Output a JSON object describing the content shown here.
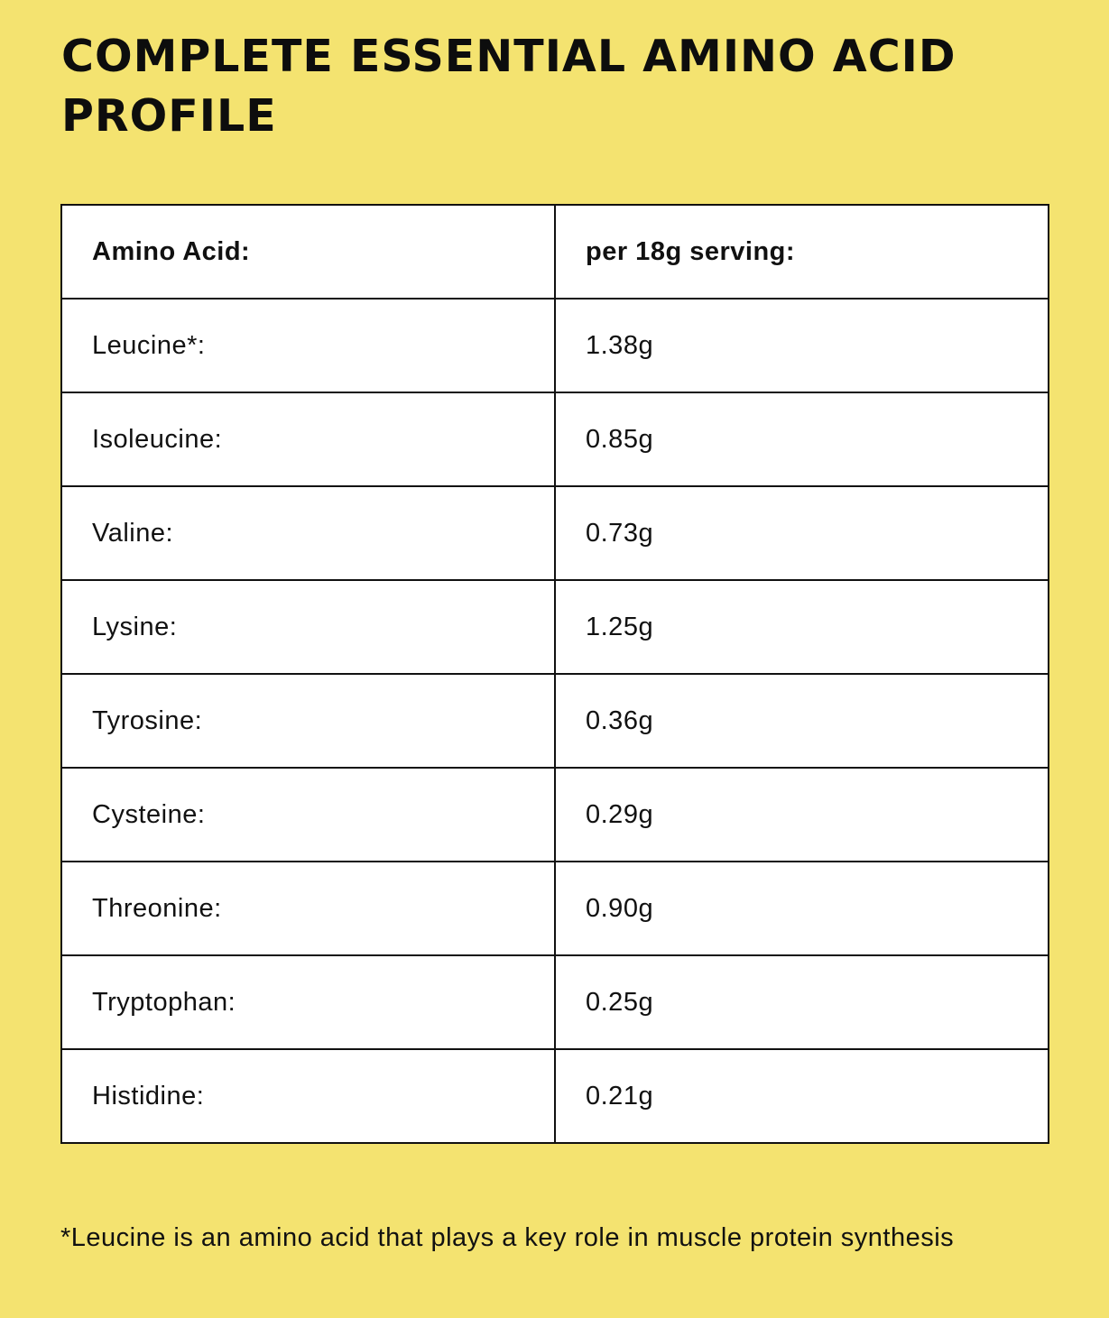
{
  "title": "COMPLETE ESSENTIAL AMINO ACID PROFILE",
  "table": {
    "headers": [
      "Amino Acid:",
      "per 18g serving:"
    ],
    "rows": [
      [
        "Leucine*:",
        "1.38g"
      ],
      [
        "Isoleucine:",
        "0.85g"
      ],
      [
        "Valine:",
        "0.73g"
      ],
      [
        "Lysine:",
        "1.25g"
      ],
      [
        "Tyrosine:",
        "0.36g"
      ],
      [
        "Cysteine:",
        "0.29g"
      ],
      [
        "Threonine:",
        "0.90g"
      ],
      [
        "Tryptophan:",
        "0.25g"
      ],
      [
        "Histidine:",
        "0.21g"
      ]
    ]
  },
  "footnote": "*Leucine is an amino acid that plays a key role in muscle protein synthesis",
  "colors": {
    "background": "#F4E370",
    "table_background": "#FFFFFF",
    "border": "#111111"
  }
}
